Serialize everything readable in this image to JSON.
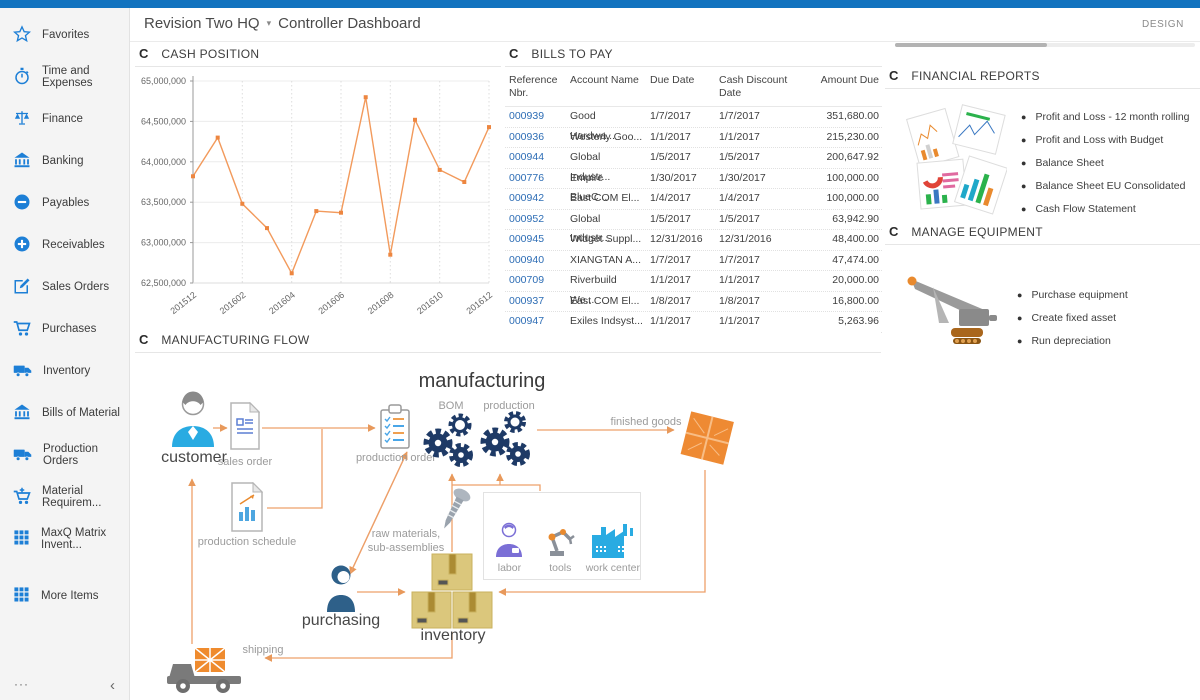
{
  "header": {
    "company": "Revision Two HQ",
    "page_title": "Controller Dashboard",
    "design_label": "DESIGN"
  },
  "sidebar": {
    "items": [
      {
        "label": "Favorites",
        "icon": "star"
      },
      {
        "label": "Time and Expenses",
        "icon": "stopwatch"
      },
      {
        "label": "Finance",
        "icon": "scales"
      },
      {
        "label": "Banking",
        "icon": "bank"
      },
      {
        "label": "Payables",
        "icon": "minus-circle"
      },
      {
        "label": "Receivables",
        "icon": "plus-circle"
      },
      {
        "label": "Sales Orders",
        "icon": "edit"
      },
      {
        "label": "Purchases",
        "icon": "cart"
      },
      {
        "label": "Inventory",
        "icon": "truck"
      },
      {
        "label": "Bills of Material",
        "icon": "bank"
      },
      {
        "label": "Production Orders",
        "icon": "truck"
      },
      {
        "label": "Material Requirem...",
        "icon": "cart-plus"
      },
      {
        "label": "MaxQ Matrix Invent...",
        "icon": "grid"
      },
      {
        "label": "More Items",
        "icon": "grid"
      }
    ],
    "more_label": "···",
    "collapse_label": "‹"
  },
  "panels": {
    "cash_position": {
      "title": "CASH POSITION"
    },
    "bills": {
      "title": "BILLS TO PAY",
      "columns": [
        "Reference Nbr.",
        "Account Name",
        "Due Date",
        "Cash Discount Date",
        "Amount Due"
      ],
      "rows": [
        {
          "ref": "000939",
          "account": "Good Hardwa...",
          "due": "1/7/2017",
          "discount": "1/7/2017",
          "amount": "351,680.00"
        },
        {
          "ref": "000936",
          "account": "Westerly Goo...",
          "due": "1/1/2017",
          "discount": "1/1/2017",
          "amount": "215,230.00"
        },
        {
          "ref": "000944",
          "account": "Global Industr...",
          "due": "1/5/2017",
          "discount": "1/5/2017",
          "amount": "200,647.92"
        },
        {
          "ref": "000776",
          "account": "Empire BlueC...",
          "due": "1/30/2017",
          "discount": "1/30/2017",
          "amount": "100,000.00"
        },
        {
          "ref": "000942",
          "account": "East COM El...",
          "due": "1/4/2017",
          "discount": "1/4/2017",
          "amount": "100,000.00"
        },
        {
          "ref": "000952",
          "account": "Global Industr...",
          "due": "1/5/2017",
          "discount": "1/5/2017",
          "amount": "63,942.90"
        },
        {
          "ref": "000945",
          "account": "Widget Suppl...",
          "due": "12/31/2016",
          "discount": "12/31/2016",
          "amount": "48,400.00"
        },
        {
          "ref": "000940",
          "account": "XIANGTAN A...",
          "due": "1/7/2017",
          "discount": "1/7/2017",
          "amount": "47,474.00"
        },
        {
          "ref": "000709",
          "account": "Riverbuild We...",
          "due": "1/1/2017",
          "discount": "1/1/2017",
          "amount": "20,000.00"
        },
        {
          "ref": "000937",
          "account": "East COM El...",
          "due": "1/8/2017",
          "discount": "1/8/2017",
          "amount": "16,800.00"
        },
        {
          "ref": "000947",
          "account": "Exiles Indsyst...",
          "due": "1/1/2017",
          "discount": "1/1/2017",
          "amount": "5,263.96"
        }
      ]
    },
    "financial_reports": {
      "title": "FINANCIAL REPORTS",
      "links": [
        "Profit and Loss - 12 month rolling",
        "Profit and Loss with Budget",
        "Balance Sheet",
        "Balance Sheet EU Consolidated",
        "Cash Flow Statement"
      ]
    },
    "manage_equipment": {
      "title": "MANAGE EQUIPMENT",
      "links": [
        "Purchase equipment",
        "Create fixed asset",
        "Run depreciation"
      ]
    },
    "flow": {
      "title": "MANUFACTURING FLOW",
      "manufacturing": "manufacturing",
      "customer": "customer",
      "sales_order": "sales order",
      "production_schedule": "production schedule",
      "production_order": "production order",
      "bom": "BOM",
      "production": "production",
      "finished_goods": "finished goods",
      "raw_materials": "raw materials, sub-assemblies",
      "labor": "labor",
      "tools": "tools",
      "work_center": "work center",
      "purchasing": "purchasing",
      "inventory": "inventory",
      "shipping": "shipping"
    }
  },
  "chart_data": {
    "type": "line",
    "title": "CASH POSITION",
    "x": [
      "201512",
      "201601",
      "201602",
      "201603",
      "201604",
      "201605",
      "201606",
      "201607",
      "201608",
      "201609",
      "201610",
      "201611",
      "201612"
    ],
    "values": [
      63820000,
      64300000,
      63480000,
      63180000,
      62620000,
      63390000,
      63370000,
      64800000,
      62850000,
      64520000,
      63900000,
      63750000,
      64430000
    ],
    "xlabel": "",
    "ylabel": "",
    "ylim": [
      62500000,
      65000000
    ],
    "ystep": 500000,
    "xticks_every": 2,
    "grid": true,
    "legend": "none",
    "line_color": "#f29a5c",
    "marker_color": "#ed8640"
  },
  "colors": {
    "accent_blue": "#1273bf",
    "icon_blue": "#1d7fd6",
    "link_blue": "#2d6db5",
    "chart_orange": "#f29a5c",
    "arrow_orange": "#eda06a",
    "gear_navy": "#1e3a66"
  }
}
